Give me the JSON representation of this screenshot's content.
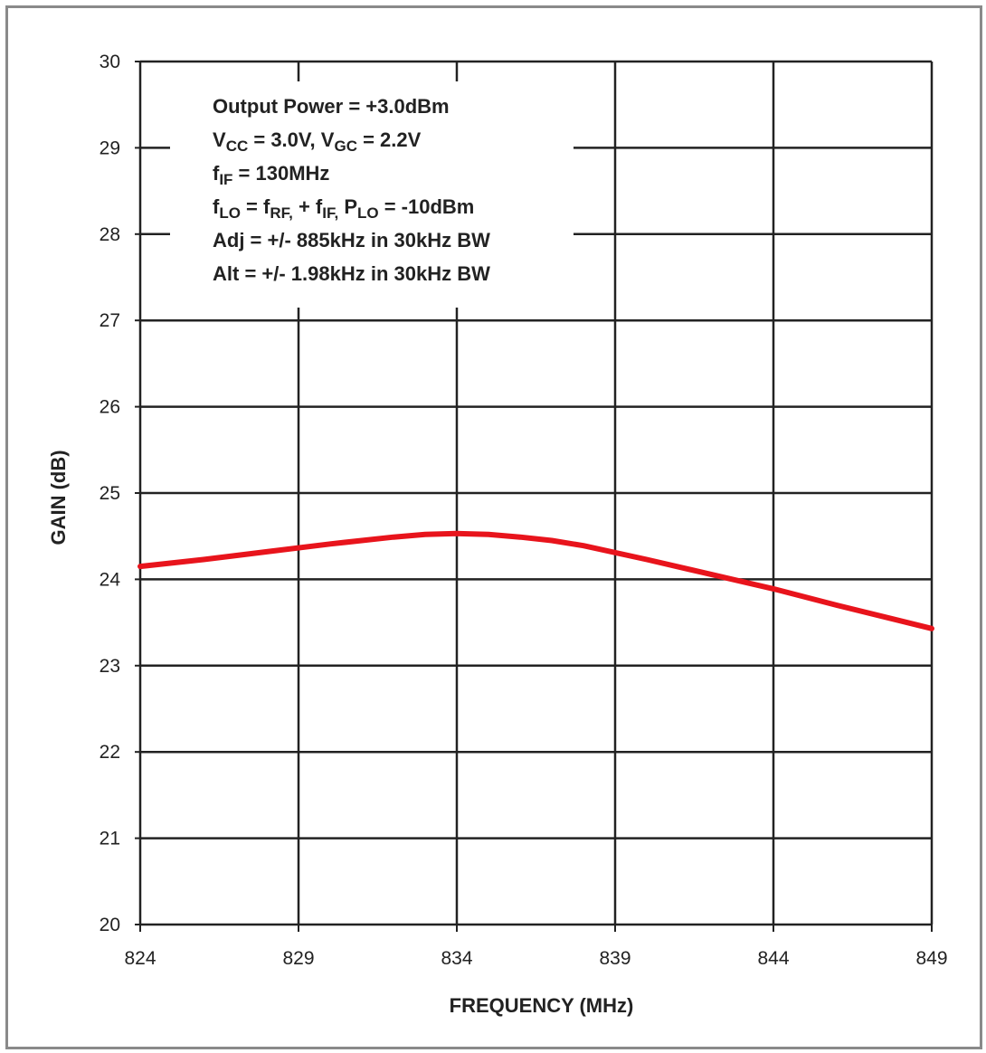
{
  "chart_data": {
    "type": "line",
    "title": "",
    "xlabel": "FREQUENCY (MHz)",
    "ylabel": "GAIN (dB)",
    "xlim": [
      824,
      849
    ],
    "ylim": [
      20,
      30
    ],
    "xticks": [
      824,
      829,
      834,
      839,
      844,
      849
    ],
    "yticks": [
      20,
      21,
      22,
      23,
      24,
      25,
      26,
      27,
      28,
      29,
      30
    ],
    "grid": true,
    "series": [
      {
        "color": "#e8141c",
        "x": [
          824,
          826,
          828,
          830,
          832,
          833,
          834,
          835,
          836,
          837,
          838,
          840,
          842,
          844,
          846,
          848,
          849
        ],
        "y": [
          24.15,
          24.23,
          24.32,
          24.41,
          24.49,
          24.52,
          24.53,
          24.52,
          24.49,
          24.45,
          24.39,
          24.23,
          24.06,
          23.89,
          23.7,
          23.52,
          23.43
        ]
      }
    ],
    "annotations": [
      {
        "parts": [
          {
            "t": "Output Power = +3.0dBm"
          }
        ]
      },
      {
        "parts": [
          {
            "t": "V"
          },
          {
            "t": "CC",
            "sub": true
          },
          {
            "t": " = 3.0V, V"
          },
          {
            "t": "GC",
            "sub": true
          },
          {
            "t": " = 2.2V"
          }
        ]
      },
      {
        "parts": [
          {
            "t": "f"
          },
          {
            "t": "IF",
            "sub": true
          },
          {
            "t": " = 130MHz"
          }
        ]
      },
      {
        "parts": [
          {
            "t": "f"
          },
          {
            "t": "LO",
            "sub": true
          },
          {
            "t": " = f"
          },
          {
            "t": "RF,",
            "sub": true
          },
          {
            "t": " + f"
          },
          {
            "t": "IF,",
            "sub": true
          },
          {
            "t": " P"
          },
          {
            "t": "LO",
            "sub": true
          },
          {
            "t": " = -10dBm"
          }
        ]
      },
      {
        "parts": [
          {
            "t": "Adj = +/- 885kHz in 30kHz BW"
          }
        ]
      },
      {
        "parts": [
          {
            "t": "Alt = +/- 1.98kHz in 30kHz BW"
          }
        ]
      }
    ]
  }
}
